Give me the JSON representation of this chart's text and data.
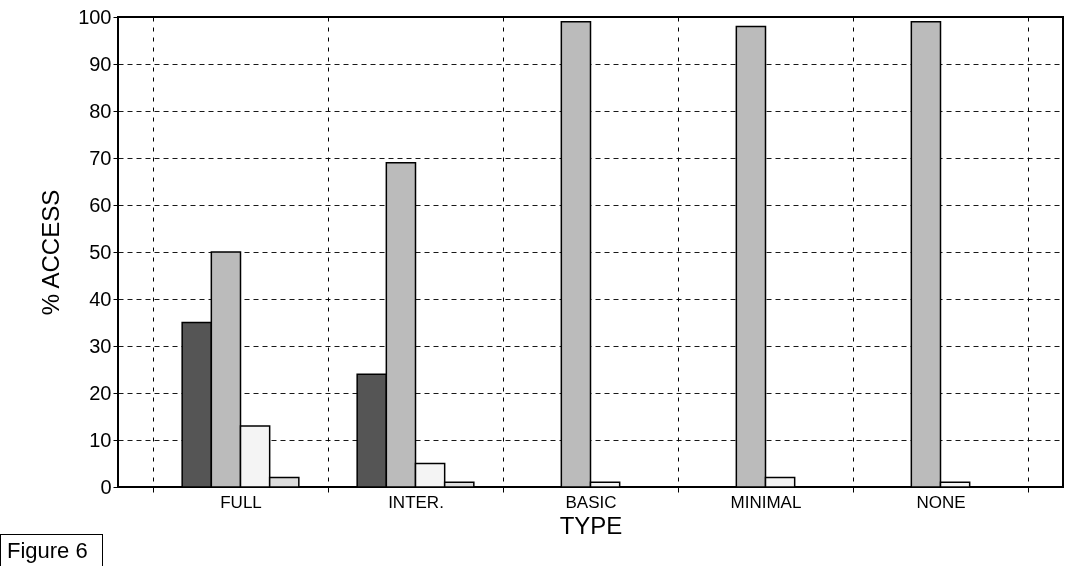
{
  "chart_data": {
    "type": "bar",
    "xlabel": "TYPE",
    "ylabel": "% ACCESS",
    "categories": [
      "FULL",
      "INTER.",
      "BASIC",
      "MINIMAL",
      "NONE"
    ],
    "series": [
      {
        "color": "#555555",
        "values": [
          35,
          24,
          0,
          0,
          0
        ]
      },
      {
        "color": "#bbbbbb",
        "values": [
          50,
          69,
          99,
          98,
          99
        ]
      },
      {
        "color": "#f4f4f4",
        "values": [
          13,
          5,
          1,
          2,
          1
        ]
      },
      {
        "color": "#dddddd",
        "values": [
          2,
          1,
          0,
          0,
          0
        ]
      }
    ],
    "ylim": [
      0,
      100
    ],
    "yticks": [
      0,
      10,
      20,
      30,
      40,
      50,
      60,
      70,
      80,
      90,
      100
    ],
    "grid": true,
    "annotations": [
      "Figure 6"
    ]
  }
}
